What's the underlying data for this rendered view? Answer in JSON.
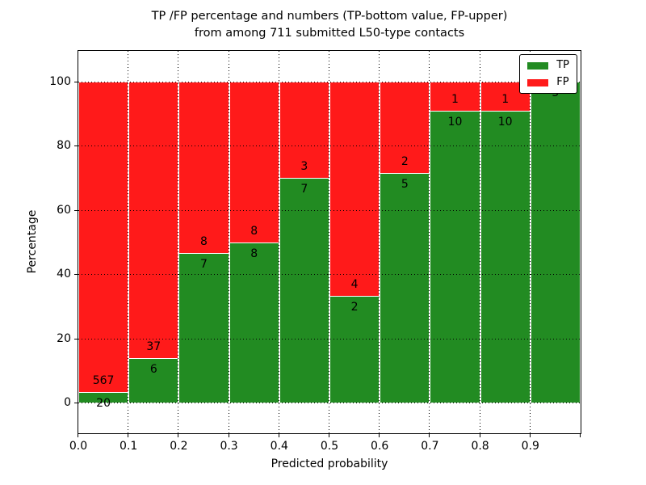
{
  "figure": {
    "title_line1": "TP /FP percentage and numbers (TP-bottom value, FP-upper)",
    "title_line2": "from among 711 submitted L50-type contacts",
    "xlabel": "Predicted probability",
    "ylabel": "Percentage"
  },
  "legend": {
    "position": "upper-right",
    "items": [
      {
        "label": "TP",
        "color": "#228b22"
      },
      {
        "label": "FP",
        "color": "#ff1a1a"
      }
    ]
  },
  "chart_data": {
    "type": "bar",
    "stacked": true,
    "normalized": "each bar scaled to 100 percent, TP bottom / FP top",
    "title": "TP /FP percentage and numbers (TP-bottom value, FP-upper) from among 711 submitted L50-type contacts",
    "xlabel": "Predicted probability",
    "ylabel": "Percentage",
    "total_contacts": 711,
    "x_bin_width": 0.1,
    "x_bin_starts": [
      0.0,
      0.1,
      0.2,
      0.3,
      0.4,
      0.5,
      0.6,
      0.7,
      0.8,
      0.9
    ],
    "xtick_labels": [
      "0.0",
      "0.1",
      "0.2",
      "0.3",
      "0.4",
      "0.5",
      "0.6",
      "0.7",
      "0.8",
      "0.9"
    ],
    "ytick_values": [
      0,
      20,
      40,
      60,
      80,
      100
    ],
    "ylim_percent": [
      -11,
      110
    ],
    "grid": "dotted black, vertical at each 0.1 and horizontal at each 20, drawn above bars",
    "series": [
      {
        "name": "TP",
        "color": "#228b22",
        "counts": [
          20,
          6,
          7,
          8,
          7,
          2,
          5,
          10,
          10,
          5
        ]
      },
      {
        "name": "FP",
        "color": "#ff1a1a",
        "counts": [
          567,
          37,
          8,
          8,
          3,
          4,
          2,
          1,
          1,
          0
        ]
      }
    ],
    "visible_bar_labels": {
      "tp": [
        "20",
        "6",
        "7",
        "8",
        "7",
        "2",
        "5",
        "10",
        "10",
        "5"
      ],
      "fp": [
        "567",
        "37",
        "8",
        "8",
        "3",
        "4",
        "2",
        "1",
        "1",
        ""
      ]
    }
  }
}
